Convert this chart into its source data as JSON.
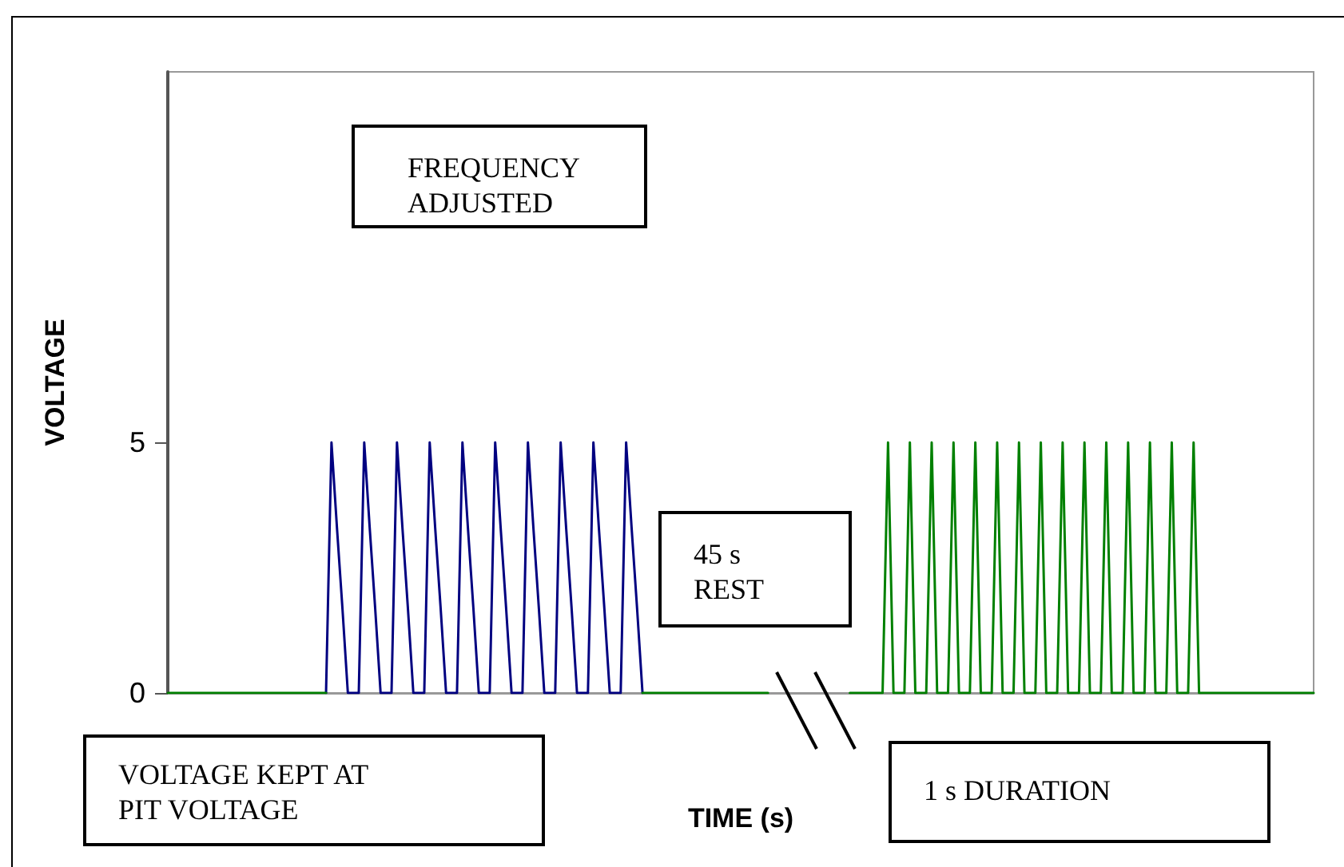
{
  "chart_data": {
    "type": "line",
    "xlabel": "TIME (s)",
    "ylabel": "VOLTAGE",
    "annotations": [
      "FREQUENCY ADJUSTED",
      "45 s REST",
      "VOLTAGE KEPT AT PIT VOLTAGE",
      "1 s DURATION"
    ],
    "categories": [
      null,
      null,
      null,
      null,
      null,
      null,
      null,
      null,
      null,
      null,
      null,
      null,
      null,
      null,
      null,
      null,
      null,
      null,
      null,
      null,
      null,
      null,
      null,
      null,
      null,
      null,
      null,
      null,
      null,
      null,
      null,
      null,
      null,
      null,
      null,
      null,
      null,
      null,
      null,
      null,
      null,
      null,
      null,
      null,
      null,
      null,
      null,
      null,
      null,
      null,
      null,
      null,
      null,
      null,
      null,
      null,
      null,
      null,
      null,
      null,
      null,
      null,
      null,
      null,
      null,
      null,
      null,
      null,
      null,
      null,
      null,
      null,
      null,
      null,
      null,
      null,
      null,
      null,
      null,
      null,
      null,
      null,
      null,
      null,
      null,
      null,
      null,
      null,
      null,
      null,
      null,
      null,
      null,
      null,
      null,
      null,
      null,
      null,
      null,
      null,
      null,
      null,
      null,
      null,
      null,
      null,
      null,
      null,
      null,
      null,
      null,
      null,
      null,
      null,
      null,
      null,
      null,
      null,
      null,
      null,
      null,
      null,
      null,
      null,
      null,
      null,
      null,
      null,
      null,
      null,
      null,
      null,
      null,
      null,
      null,
      null,
      null,
      null,
      null,
      null,
      null,
      null,
      null,
      null,
      null,
      null,
      null,
      null,
      null,
      null,
      null,
      null,
      null,
      null,
      null,
      null,
      null,
      null,
      null,
      null,
      null,
      null,
      null,
      null,
      null,
      null,
      null,
      null,
      null,
      null,
      null,
      null,
      null,
      null,
      null,
      null,
      null,
      null,
      null,
      null,
      null,
      null,
      null,
      null,
      null,
      null,
      null,
      null,
      null,
      null,
      null,
      null,
      null,
      null,
      null,
      null,
      null,
      null,
      null,
      null,
      null,
      null,
      null,
      null,
      null,
      null,
      null,
      null,
      null,
      null,
      null
    ],
    "series": [
      {
        "color": "#000080",
        "values": [
          null,
          null,
          null,
          null,
          null,
          null,
          null,
          null,
          null,
          null,
          null,
          null,
          null,
          null,
          null,
          null,
          null,
          null,
          null,
          null,
          null,
          null,
          null,
          null,
          null,
          null,
          null,
          null,
          null,
          0,
          5,
          3.3,
          1.7,
          0,
          0,
          0,
          5,
          3.3,
          1.7,
          0,
          0,
          0,
          5,
          3.3,
          1.7,
          0,
          0,
          0,
          5,
          3.3,
          1.7,
          0,
          0,
          0,
          5,
          3.3,
          1.7,
          0,
          0,
          0,
          5,
          3.3,
          1.7,
          0,
          0,
          0,
          5,
          3.3,
          1.7,
          0,
          0,
          0,
          5,
          3.3,
          1.7,
          0,
          0,
          0,
          5,
          3.3,
          1.7,
          0,
          0,
          0,
          5,
          3.3,
          1.7,
          0,
          null,
          null,
          null,
          null,
          null,
          null,
          null,
          null,
          null,
          null,
          null,
          null,
          null,
          null,
          null,
          null,
          null,
          null,
          null,
          null,
          null,
          null,
          null,
          null,
          null,
          null,
          null,
          null,
          null,
          null,
          null,
          null,
          null,
          null,
          null,
          null,
          null,
          null,
          null,
          null,
          null,
          null,
          null,
          null,
          null,
          null,
          null,
          null,
          null,
          null,
          null,
          null,
          null,
          null,
          null,
          null,
          null,
          null,
          null,
          null,
          null,
          null,
          null,
          null,
          null,
          null,
          null,
          null,
          null,
          null,
          null,
          null,
          null,
          null,
          null,
          null,
          null,
          null,
          null,
          null,
          null,
          null,
          null,
          null,
          null,
          null,
          null,
          null,
          null,
          null,
          null,
          null,
          null,
          null,
          null,
          null,
          null,
          null,
          null,
          null,
          null,
          null,
          null,
          null,
          null,
          null,
          null,
          null,
          null,
          null,
          null,
          null,
          null,
          null,
          null,
          null,
          null,
          null,
          null,
          null,
          null,
          null,
          null
        ]
      },
      {
        "color": "#008000",
        "values": [
          0,
          0,
          0,
          0,
          0,
          0,
          0,
          0,
          0,
          0,
          0,
          0,
          0,
          0,
          0,
          0,
          0,
          0,
          0,
          0,
          0,
          0,
          0,
          0,
          0,
          0,
          0,
          0,
          0,
          0,
          null,
          null,
          null,
          null,
          null,
          null,
          null,
          null,
          null,
          null,
          null,
          null,
          null,
          null,
          null,
          null,
          null,
          null,
          null,
          null,
          null,
          null,
          null,
          null,
          null,
          null,
          null,
          null,
          null,
          null,
          null,
          null,
          null,
          null,
          null,
          null,
          null,
          null,
          null,
          null,
          null,
          null,
          null,
          null,
          null,
          null,
          null,
          null,
          null,
          null,
          null,
          null,
          null,
          null,
          null,
          null,
          null,
          0,
          0,
          0,
          0,
          0,
          0,
          0,
          0,
          0,
          0,
          0,
          0,
          0,
          0,
          0,
          0,
          0,
          0,
          0,
          0,
          0,
          0,
          0,
          0,
          null,
          null,
          null,
          null,
          null,
          null,
          null,
          null,
          null,
          null,
          null,
          null,
          null,
          null,
          0,
          0,
          0,
          0,
          0,
          0,
          0,
          5,
          0,
          0,
          0,
          5,
          0,
          0,
          0,
          5,
          0,
          0,
          0,
          5,
          0,
          0,
          0,
          5,
          0,
          0,
          0,
          5,
          0,
          0,
          0,
          5,
          0,
          0,
          0,
          5,
          0,
          0,
          0,
          5,
          0,
          0,
          0,
          5,
          0,
          0,
          0,
          5,
          0,
          0,
          0,
          5,
          0,
          0,
          0,
          5,
          0,
          0,
          0,
          5,
          0,
          0,
          0,
          5,
          0,
          0,
          0,
          0,
          0,
          0,
          0,
          0,
          0,
          0,
          0,
          0,
          0,
          0,
          0,
          0,
          0,
          0,
          0,
          0,
          0,
          0
        ]
      }
    ],
    "ylim": [
      0,
      12.4
    ],
    "yticks": [
      0,
      5
    ],
    "tick_labels": "y",
    "line_style": "solid"
  }
}
